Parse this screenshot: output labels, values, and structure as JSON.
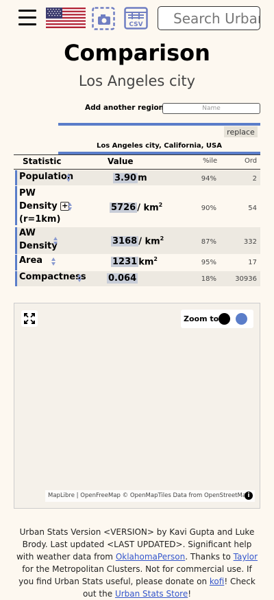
{
  "header": {
    "search_placeholder": "Search Urban Stats",
    "icons": [
      "menu-icon",
      "us-flag-icon",
      "camera-icon",
      "csv-icon"
    ]
  },
  "page": {
    "title": "Comparison",
    "subtitle": "Los Angeles city",
    "add_region_label": "Add another region:",
    "add_region_placeholder": "Name",
    "replace_label": "replace",
    "region_full_name": "Los Angeles city, California, USA"
  },
  "table": {
    "headers": {
      "statistic": "Statistic",
      "value": "Value",
      "percentile": "%ile",
      "ordinal": "Ord"
    },
    "rows": [
      {
        "name": "Population",
        "value": "3.90",
        "unit": "m",
        "unit_sup": "",
        "percentile": "94%",
        "ordinal": "2"
      },
      {
        "name_line1": "PW",
        "name_line2": "Density",
        "name_line3": "(r=1km)",
        "expand_label": "+",
        "value": "5726",
        "unit": "/ km",
        "unit_sup": "2",
        "percentile": "90%",
        "ordinal": "54"
      },
      {
        "name_line1": "AW",
        "name_line2": "Density",
        "value": "3168",
        "unit": "/ km",
        "unit_sup": "2",
        "percentile": "87%",
        "ordinal": "332"
      },
      {
        "name": "Area",
        "value": "1231",
        "unit": "km",
        "unit_sup": "2",
        "percentile": "95%",
        "ordinal": "17"
      },
      {
        "name": "Compactness",
        "value": "0.064",
        "unit": "",
        "unit_sup": "",
        "percentile": "18%",
        "ordinal": "30936"
      }
    ]
  },
  "map": {
    "zoom_label": "Zoom to:",
    "zoom_colors": [
      "#000000",
      "#5a7dc9"
    ],
    "attribution": {
      "maplibre": "MapLibre",
      "sep": " | ",
      "openfreemap": "OpenFreeMap",
      "openmaptiles": "© OpenMapTiles",
      "data_from": " Data from ",
      "osm": "OpenStreetMap"
    },
    "info_label": "i"
  },
  "footer": {
    "text1": "Urban Stats Version <VERSION> by Kavi Gupta and Luke Brody. Last updated <LAST UPDATED>. Significant help with weather data from ",
    "link1": "OklahomaPerson",
    "text2": ". Thanks to ",
    "link2": "Taylor",
    "text3": " for the Metropolitan Clusters. Not for commercial use. If you find Urban Stats useful, please donate on ",
    "link3": "kofi",
    "text4": "! Check out the ",
    "link4": "Urban Stats Store",
    "text5": "!"
  },
  "colors": {
    "accent": "#5a7dc9",
    "background": "#fdf8f0",
    "row_band": "#ede9e1",
    "value_highlight": "#c8cdd8",
    "link": "#3355cc"
  }
}
